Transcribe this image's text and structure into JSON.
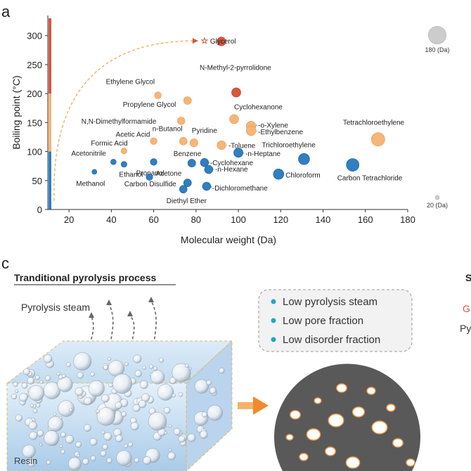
{
  "panel_a_letter": "a",
  "panel_c_letter": "c",
  "chart_data": {
    "type": "scatter",
    "title": "",
    "xlabel": "Molecular weight (Da)",
    "ylabel": "Boiling point (°C)",
    "xlim": [
      10,
      180
    ],
    "ylim": [
      0,
      330
    ],
    "xticks": [
      20,
      40,
      60,
      80,
      100,
      120,
      140,
      160,
      180
    ],
    "yticks": [
      0,
      50,
      100,
      150,
      200,
      250,
      300
    ],
    "grid": false,
    "colors": {
      "low": "#2f7fc1",
      "mid": "#f5b677",
      "high": "#d9573a"
    },
    "points": [
      {
        "label": "Glycerol",
        "x": 92,
        "y": 290,
        "group": "high"
      },
      {
        "label": "N-Methyl-2-pyrrolidone",
        "x": 99,
        "y": 202,
        "group": "high"
      },
      {
        "label": "Ethylene Glycol",
        "x": 62,
        "y": 197,
        "group": "mid"
      },
      {
        "label": "Propylene Glycol",
        "x": 76,
        "y": 188,
        "group": "mid"
      },
      {
        "label": "N,N-Dimethylformamide",
        "x": 73,
        "y": 153,
        "group": "mid"
      },
      {
        "label": "Cyclohexanone",
        "x": 98,
        "y": 156,
        "group": "mid"
      },
      {
        "label": "o-Xylene",
        "x": 106,
        "y": 144,
        "group": "mid"
      },
      {
        "label": "Ethylbenzene",
        "x": 106,
        "y": 136,
        "group": "mid"
      },
      {
        "label": "Tetrachloroethylene",
        "x": 166,
        "y": 121,
        "group": "mid"
      },
      {
        "label": "n-Butanol",
        "x": 74,
        "y": 118,
        "group": "mid"
      },
      {
        "label": "Pyridine",
        "x": 79,
        "y": 115,
        "group": "mid"
      },
      {
        "label": "Acetic Acid",
        "x": 60,
        "y": 118,
        "group": "mid"
      },
      {
        "label": "Formic Acid",
        "x": 46,
        "y": 101,
        "group": "mid"
      },
      {
        "label": "Toluene",
        "x": 92,
        "y": 111,
        "group": "mid"
      },
      {
        "label": "n-Heptane",
        "x": 100,
        "y": 98,
        "group": "low"
      },
      {
        "label": "Trichloroethylene",
        "x": 131,
        "y": 87,
        "group": "low"
      },
      {
        "label": "Propanol",
        "x": 60,
        "y": 82,
        "group": "low"
      },
      {
        "label": "Benzene",
        "x": 78,
        "y": 80,
        "group": "low"
      },
      {
        "label": "Cyclohexane",
        "x": 84,
        "y": 81,
        "group": "low"
      },
      {
        "label": "n-Hexane",
        "x": 86,
        "y": 69,
        "group": "low"
      },
      {
        "label": "Acetonitrile",
        "x": 41,
        "y": 82,
        "group": "low"
      },
      {
        "label": "Ethanol",
        "x": 46,
        "y": 78,
        "group": "low"
      },
      {
        "label": "Chloroform",
        "x": 119,
        "y": 61,
        "group": "low"
      },
      {
        "label": "Carbon Tetrachloride",
        "x": 154,
        "y": 77,
        "group": "low"
      },
      {
        "label": "Methanol",
        "x": 32,
        "y": 65,
        "group": "low"
      },
      {
        "label": "Acetone",
        "x": 58,
        "y": 56,
        "group": "low"
      },
      {
        "label": "Carbon Disulfide",
        "x": 76,
        "y": 46,
        "group": "low"
      },
      {
        "label": "Diethyl Ether",
        "x": 74,
        "y": 35,
        "group": "low"
      },
      {
        "label": "Dichloromethane",
        "x": 85,
        "y": 40,
        "group": "low"
      }
    ],
    "size_legend": [
      {
        "label": "180 (Da)",
        "value": 180
      },
      {
        "label": "20 (Da)",
        "value": 20
      }
    ],
    "side_bar": [
      {
        "from": 200,
        "to": 330,
        "color": "#d9573a"
      },
      {
        "from": 100,
        "to": 200,
        "color": "#f5b677"
      },
      {
        "from": 0,
        "to": 100,
        "color": "#2f7fc1"
      }
    ]
  },
  "panel_c": {
    "heading": "Tranditional pyrolysis process",
    "steam_label": "Pyrolysis steam",
    "resin_label": "Resin",
    "bullets": [
      "Low pyrolysis steam",
      "Low pore fraction",
      "Low disorder fraction"
    ],
    "right_cut_letter": "S",
    "right_cut_g": "G",
    "right_cut_py": "Py",
    "colors": {
      "bullet": "#2aa3c6",
      "arrow": "#f08a2f",
      "disk": "#595959",
      "pore_edge": "#f39c4a"
    }
  }
}
